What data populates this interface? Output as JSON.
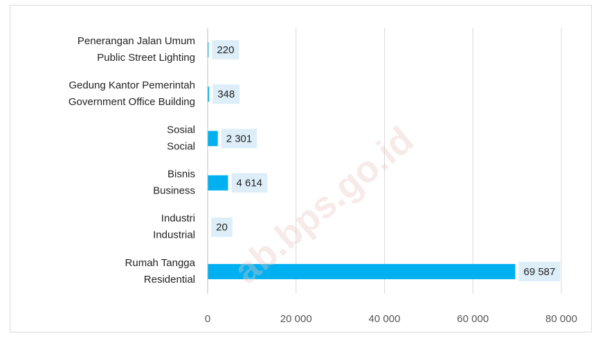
{
  "chart_data": {
    "type": "bar",
    "orientation": "horizontal",
    "categories": [
      [
        "Penerangan Jalan Umum",
        "Public Street Lighting"
      ],
      [
        "Gedung Kantor Pemerintah",
        "Government Office Building"
      ],
      [
        "Sosial",
        "Social"
      ],
      [
        "Bisnis",
        "Business"
      ],
      [
        "Industri",
        "Industrial"
      ],
      [
        "Rumah Tangga",
        "Residential"
      ]
    ],
    "values": [
      220,
      348,
      2301,
      4614,
      20,
      69587
    ],
    "value_labels": [
      "220",
      "348",
      "2 301",
      "4 614",
      "20",
      "69 587"
    ],
    "color": "#00b0f0",
    "xlim": [
      0,
      80000
    ],
    "xticks": [
      0,
      {
        "value": 20000,
        "label": "20 000"
      },
      {
        "value": 40000,
        "label": "40 000"
      },
      {
        "value": 60000,
        "label": "60 000"
      },
      {
        "value": 80000,
        "label": "80 000"
      }
    ],
    "grid": true,
    "watermark": "ab.bps.go.id"
  }
}
